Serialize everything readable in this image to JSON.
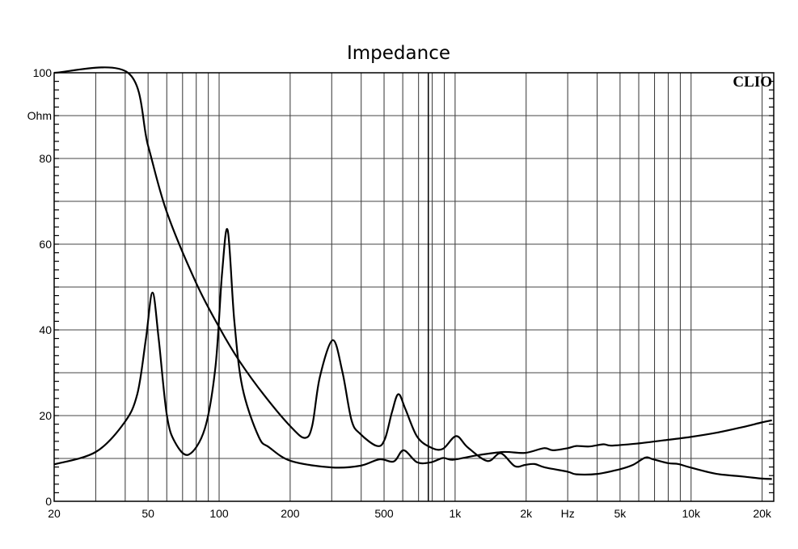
{
  "chart_data": {
    "type": "line",
    "title": "Impedance",
    "xlabel": "Hz",
    "ylabel": "Ohm",
    "x_scale": "log",
    "xlim": [
      20,
      22400
    ],
    "ylim": [
      0,
      100
    ],
    "grid": true,
    "logo": "CLIO",
    "x_tick_labels": [
      {
        "f": 20,
        "label": "20"
      },
      {
        "f": 50,
        "label": "50"
      },
      {
        "f": 100,
        "label": "100"
      },
      {
        "f": 200,
        "label": "200"
      },
      {
        "f": 500,
        "label": "500"
      },
      {
        "f": 1000,
        "label": "1k"
      },
      {
        "f": 2000,
        "label": "2k"
      },
      {
        "f": 3000,
        "label": "Hz"
      },
      {
        "f": 5000,
        "label": "5k"
      },
      {
        "f": 10000,
        "label": "10k"
      },
      {
        "f": 20000,
        "label": "20k"
      }
    ],
    "y_tick_labels": [
      {
        "v": 100,
        "label": "100"
      },
      {
        "v": 90,
        "label": "Ohm"
      },
      {
        "v": 80,
        "label": "80"
      },
      {
        "v": 60,
        "label": "60"
      },
      {
        "v": 40,
        "label": "40"
      },
      {
        "v": 20,
        "label": "20"
      },
      {
        "v": 0,
        "label": "0"
      }
    ],
    "markers_hz": [
      770
    ],
    "line_color": "#000000",
    "series": [
      {
        "x": [
          20,
          30,
          39.6,
          45,
          48.9,
          52.2,
          55.5,
          60,
          65,
          74.3,
          87,
          96.5,
          103,
          108.8,
          116,
          125.6,
          147,
          163,
          202,
          300,
          397,
          478,
          550,
          605,
          690,
          790,
          888,
          980,
          1230,
          1600,
          1980,
          2380,
          2600,
          3000,
          3260,
          3700,
          4250,
          4600,
          5950,
          7600,
          9900,
          12800,
          16500,
          19900,
          22000
        ],
        "y": [
          8.6,
          11.5,
          18.3,
          25,
          37.7,
          48.7,
          37.7,
          20.2,
          13.8,
          10.9,
          17,
          31.4,
          53.5,
          63.2,
          42.1,
          26.5,
          15.1,
          12.6,
          9.4,
          7.9,
          8.3,
          9.8,
          9.3,
          11.9,
          9.1,
          9.1,
          10.1,
          9.7,
          10.7,
          11.5,
          11.3,
          12.4,
          11.9,
          12.4,
          12.9,
          12.8,
          13.3,
          13,
          13.5,
          14.2,
          15,
          16,
          17.3,
          18.4,
          18.9
        ]
      },
      {
        "x": [
          20,
          41.1,
          50,
          60,
          80,
          101,
          122,
          155,
          202,
          231,
          248,
          267,
          303,
          333,
          364,
          397,
          467,
          504,
          540,
          575,
          617,
          690,
          787,
          886,
          1010,
          1130,
          1370,
          1560,
          1790,
          1980,
          2170,
          2400,
          3000,
          3260,
          4020,
          5000,
          5670,
          6400,
          6900,
          7980,
          8830,
          9900,
          12800,
          16500,
          19900,
          22000
        ],
        "y": [
          100,
          100,
          83,
          67.5,
          50.9,
          40.2,
          32.7,
          24.8,
          17.3,
          14.8,
          17.6,
          28.9,
          37.6,
          30.2,
          18.9,
          15.7,
          12.9,
          14.5,
          20.8,
          25,
          21.4,
          15.1,
          12.6,
          12.2,
          15.2,
          12.6,
          9.4,
          11.2,
          8.2,
          8.5,
          8.7,
          7.9,
          6.9,
          6.3,
          6.4,
          7.5,
          8.5,
          10.2,
          9.8,
          8.9,
          8.7,
          7.9,
          6.4,
          5.8,
          5.3,
          5.2
        ]
      }
    ]
  }
}
